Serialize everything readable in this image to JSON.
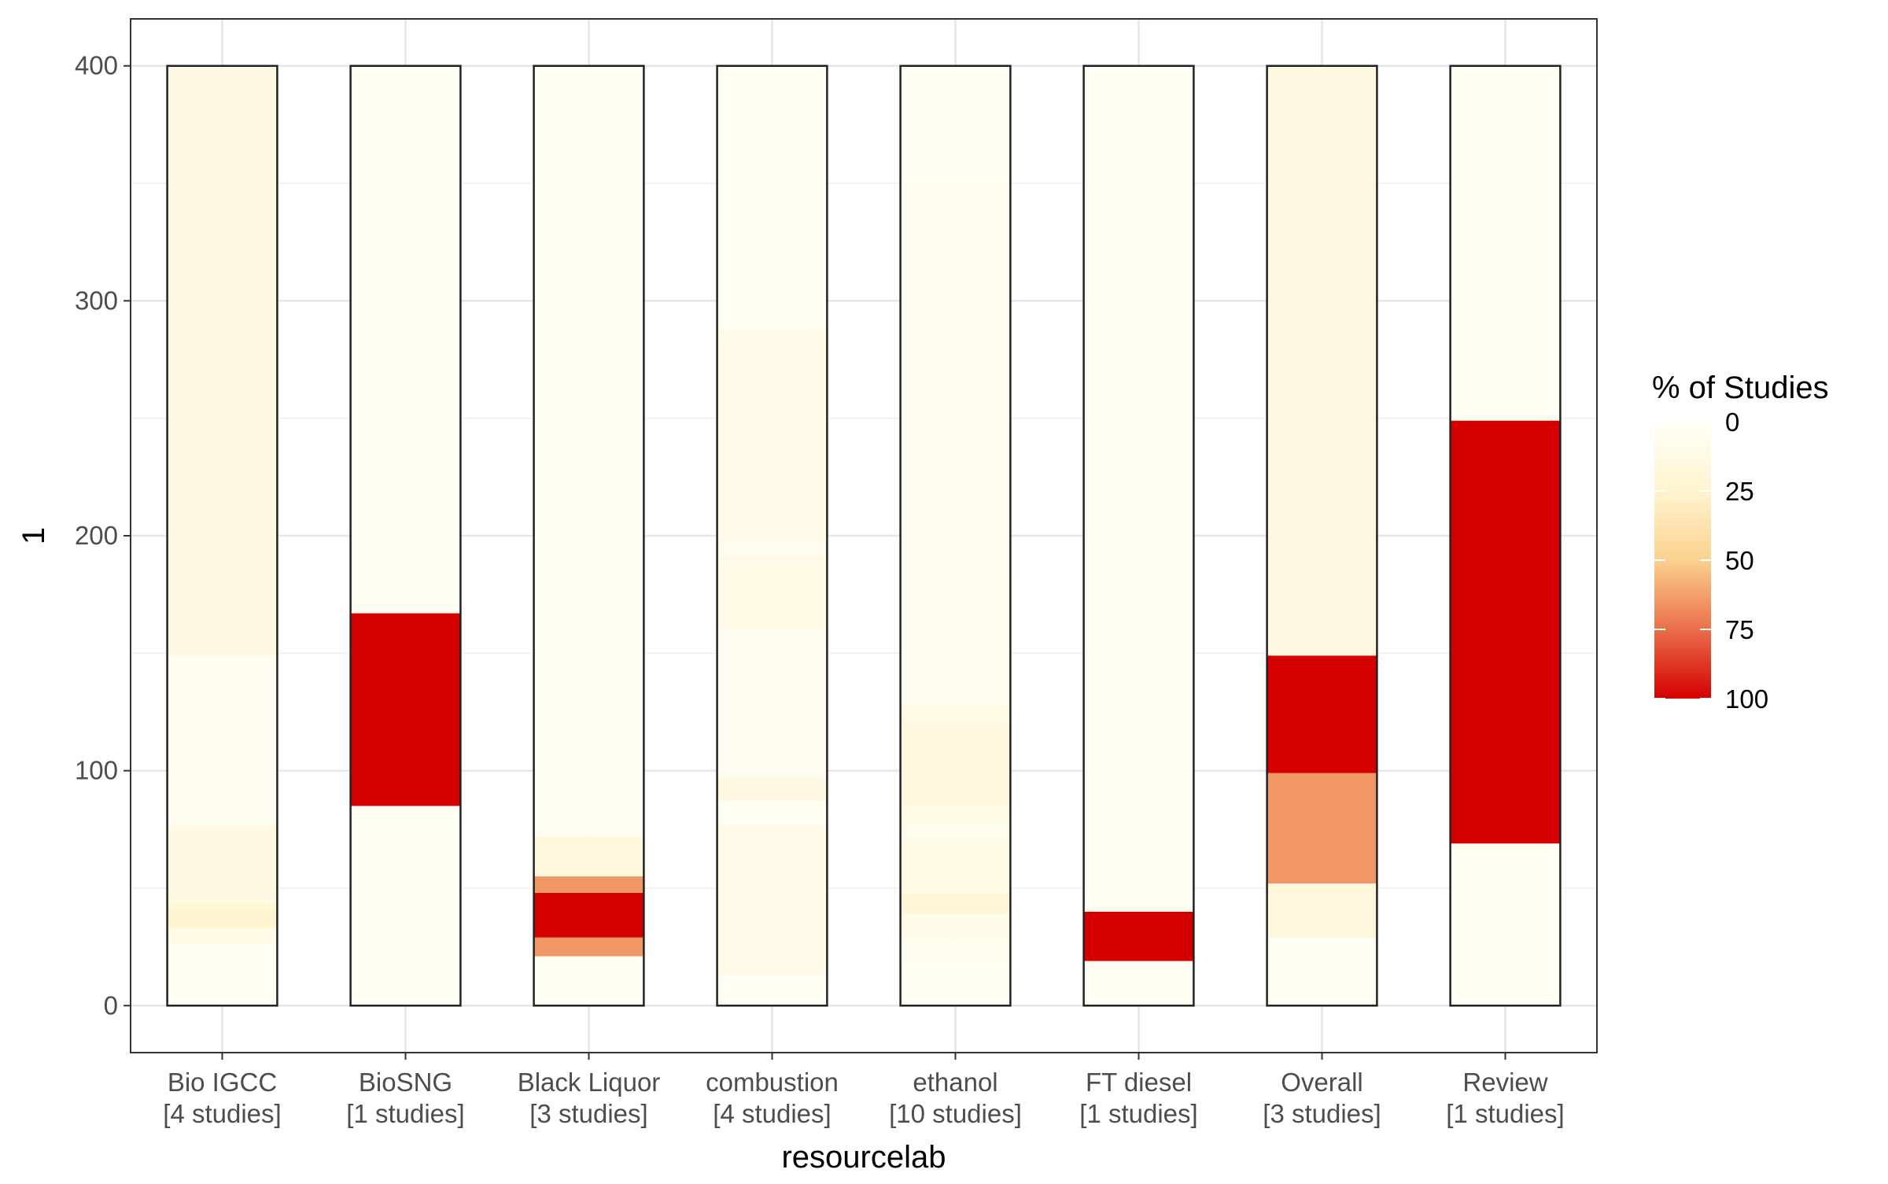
{
  "chart_data": {
    "type": "bar",
    "subtype": "stacked-heat-bar",
    "xlabel": "resourcelab",
    "ylabel": "1",
    "ylim": [
      -20,
      420
    ],
    "yticks": [
      0,
      100,
      200,
      300,
      400
    ],
    "grid": true,
    "categories": [
      {
        "line1": "Bio IGCC",
        "line2": "[4 studies]"
      },
      {
        "line1": "BioSNG",
        "line2": "[1 studies]"
      },
      {
        "line1": "Black Liquor",
        "line2": "[3 studies]"
      },
      {
        "line1": "combustion",
        "line2": "[4 studies]"
      },
      {
        "line1": "ethanol",
        "line2": "[10 studies]"
      },
      {
        "line1": "FT diesel",
        "line2": "[1 studies]"
      },
      {
        "line1": "Overall",
        "line2": "[3 studies]"
      },
      {
        "line1": "Review",
        "line2": "[1 studies]"
      }
    ],
    "bar_total": 400,
    "series": [
      {
        "category": "Bio IGCC",
        "segments": [
          {
            "from": 0,
            "to": 26,
            "pct": 3
          },
          {
            "from": 26,
            "to": 33,
            "pct": 12
          },
          {
            "from": 33,
            "to": 41,
            "pct": 25
          },
          {
            "from": 41,
            "to": 44,
            "pct": 20
          },
          {
            "from": 44,
            "to": 77,
            "pct": 13
          },
          {
            "from": 77,
            "to": 149,
            "pct": 4
          },
          {
            "from": 149,
            "to": 400,
            "pct": 13
          }
        ]
      },
      {
        "category": "BioSNG",
        "segments": [
          {
            "from": 0,
            "to": 85,
            "pct": 3
          },
          {
            "from": 85,
            "to": 167,
            "pct": 100
          },
          {
            "from": 167,
            "to": 400,
            "pct": 3
          }
        ]
      },
      {
        "category": "Black Liquor",
        "segments": [
          {
            "from": 0,
            "to": 21,
            "pct": 3
          },
          {
            "from": 21,
            "to": 29,
            "pct": 65
          },
          {
            "from": 29,
            "to": 48,
            "pct": 100
          },
          {
            "from": 48,
            "to": 55,
            "pct": 65
          },
          {
            "from": 55,
            "to": 72,
            "pct": 18
          },
          {
            "from": 72,
            "to": 400,
            "pct": 3
          }
        ]
      },
      {
        "category": "combustion",
        "segments": [
          {
            "from": 0,
            "to": 13,
            "pct": 3
          },
          {
            "from": 13,
            "to": 77,
            "pct": 10
          },
          {
            "from": 77,
            "to": 87,
            "pct": 3
          },
          {
            "from": 87,
            "to": 97,
            "pct": 13
          },
          {
            "from": 97,
            "to": 160,
            "pct": 4
          },
          {
            "from": 160,
            "to": 191,
            "pct": 12
          },
          {
            "from": 191,
            "to": 197,
            "pct": 6
          },
          {
            "from": 197,
            "to": 288,
            "pct": 10
          },
          {
            "from": 288,
            "to": 400,
            "pct": 3
          }
        ]
      },
      {
        "category": "ethanol",
        "segments": [
          {
            "from": 0,
            "to": 18,
            "pct": 3
          },
          {
            "from": 18,
            "to": 28,
            "pct": 5
          },
          {
            "from": 28,
            "to": 39,
            "pct": 10
          },
          {
            "from": 39,
            "to": 48,
            "pct": 20
          },
          {
            "from": 48,
            "to": 71,
            "pct": 12
          },
          {
            "from": 71,
            "to": 77,
            "pct": 6
          },
          {
            "from": 77,
            "to": 85,
            "pct": 12
          },
          {
            "from": 85,
            "to": 121,
            "pct": 16
          },
          {
            "from": 121,
            "to": 128,
            "pct": 12
          },
          {
            "from": 128,
            "to": 180,
            "pct": 5
          },
          {
            "from": 180,
            "to": 350,
            "pct": 4
          },
          {
            "from": 350,
            "to": 400,
            "pct": 3
          }
        ]
      },
      {
        "category": "FT diesel",
        "segments": [
          {
            "from": 0,
            "to": 19,
            "pct": 3
          },
          {
            "from": 19,
            "to": 40,
            "pct": 100
          },
          {
            "from": 40,
            "to": 400,
            "pct": 3
          }
        ]
      },
      {
        "category": "Overall",
        "segments": [
          {
            "from": 0,
            "to": 29,
            "pct": 3
          },
          {
            "from": 29,
            "to": 52,
            "pct": 18
          },
          {
            "from": 52,
            "to": 99,
            "pct": 65
          },
          {
            "from": 99,
            "to": 149,
            "pct": 100
          },
          {
            "from": 149,
            "to": 400,
            "pct": 15
          }
        ]
      },
      {
        "category": "Review",
        "segments": [
          {
            "from": 0,
            "to": 69,
            "pct": 3
          },
          {
            "from": 69,
            "to": 249,
            "pct": 100
          },
          {
            "from": 249,
            "to": 400,
            "pct": 3
          }
        ]
      }
    ],
    "legend": {
      "title": "% of Studies",
      "position": "right",
      "breaks": [
        0,
        25,
        50,
        75,
        100
      ],
      "colors": [
        "#fffff8",
        "#fff4d0",
        "#fbd28e",
        "#ea6e4a",
        "#d40000"
      ]
    }
  }
}
